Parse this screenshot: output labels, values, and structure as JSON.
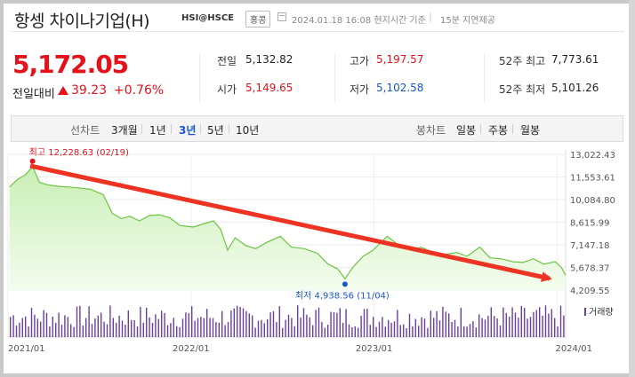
{
  "header": {
    "title": "항셍 차이나기업(H)",
    "code": "HSI@HSCE",
    "market": "홍콩",
    "timestamp": "2024.01.18 16:08 현지시간 기준",
    "separator": "|",
    "delay_note": "15분 지연제공"
  },
  "quote": {
    "price": "5,172.05",
    "change_label": "전일대비",
    "change_value": "39.23",
    "change_pct": "+0.76%",
    "stats": [
      {
        "label": "전일",
        "value": "5,132.82",
        "color": "#222222"
      },
      {
        "label": "시가",
        "value": "5,149.65",
        "color": "#e5111b"
      },
      {
        "label": "고가",
        "value": "5,197.57",
        "color": "#e5111b"
      },
      {
        "label": "저가",
        "value": "5,102.58",
        "color": "#1a57c8"
      },
      {
        "label": "52주 최고",
        "value": "7,773.61",
        "color": "#222222"
      },
      {
        "label": "52주 최저",
        "value": "5,101.26",
        "color": "#222222"
      }
    ]
  },
  "tabs": {
    "period_label": "선차트",
    "periods": [
      "3개월",
      "1년",
      "3년",
      "5년",
      "10년"
    ],
    "active_period": "3년",
    "candle_label": "봉차트",
    "candles": [
      "일봉",
      "주봉",
      "월봉"
    ]
  },
  "colors": {
    "up": "#e5111b",
    "down": "#1a57c8",
    "line": "#6cc445",
    "volume": "#6b3fa0",
    "arrow": "#ee3322"
  },
  "chart_data": {
    "type": "area",
    "y_ticks": [
      "13,022.43",
      "11,553.61",
      "10,084.80",
      "8,615.99",
      "7,147.18",
      "5,678.37",
      "4,209.55"
    ],
    "ylim": [
      4209.55,
      13022.43
    ],
    "x_ticks": [
      "2021/01",
      "2022/01",
      "2023/01",
      "2024/01"
    ],
    "x_range": [
      "2021-01-01",
      "2024-01-18"
    ],
    "series": [
      {
        "values": [
          {
            "x": "2021-01-04",
            "y": 10900
          },
          {
            "x": "2021-01-20",
            "y": 11400
          },
          {
            "x": "2021-02-05",
            "y": 11700
          },
          {
            "x": "2021-02-19",
            "y": 12228.63
          },
          {
            "x": "2021-03-05",
            "y": 11200
          },
          {
            "x": "2021-03-20",
            "y": 11050
          },
          {
            "x": "2021-04-10",
            "y": 10950
          },
          {
            "x": "2021-05-01",
            "y": 10900
          },
          {
            "x": "2021-05-20",
            "y": 10850
          },
          {
            "x": "2021-06-15",
            "y": 10750
          },
          {
            "x": "2021-07-10",
            "y": 10400
          },
          {
            "x": "2021-07-28",
            "y": 9200
          },
          {
            "x": "2021-08-15",
            "y": 8850
          },
          {
            "x": "2021-09-01",
            "y": 9000
          },
          {
            "x": "2021-09-20",
            "y": 8700
          },
          {
            "x": "2021-10-10",
            "y": 9050
          },
          {
            "x": "2021-10-30",
            "y": 9100
          },
          {
            "x": "2021-11-20",
            "y": 8900
          },
          {
            "x": "2021-12-10",
            "y": 8400
          },
          {
            "x": "2022-01-05",
            "y": 8300
          },
          {
            "x": "2022-01-25",
            "y": 8500
          },
          {
            "x": "2022-02-15",
            "y": 8700
          },
          {
            "x": "2022-03-01",
            "y": 8150
          },
          {
            "x": "2022-03-15",
            "y": 6800
          },
          {
            "x": "2022-03-30",
            "y": 7600
          },
          {
            "x": "2022-04-20",
            "y": 7100
          },
          {
            "x": "2022-05-10",
            "y": 6900
          },
          {
            "x": "2022-06-01",
            "y": 7300
          },
          {
            "x": "2022-06-28",
            "y": 7700
          },
          {
            "x": "2022-07-20",
            "y": 7000
          },
          {
            "x": "2022-08-15",
            "y": 6900
          },
          {
            "x": "2022-09-10",
            "y": 6600
          },
          {
            "x": "2022-10-01",
            "y": 5900
          },
          {
            "x": "2022-10-20",
            "y": 5600
          },
          {
            "x": "2022-11-04",
            "y": 4938.56
          },
          {
            "x": "2022-11-20",
            "y": 5700
          },
          {
            "x": "2022-12-10",
            "y": 6400
          },
          {
            "x": "2022-12-30",
            "y": 6800
          },
          {
            "x": "2023-01-27",
            "y": 7700
          },
          {
            "x": "2023-02-20",
            "y": 7100
          },
          {
            "x": "2023-03-15",
            "y": 6800
          },
          {
            "x": "2023-04-05",
            "y": 7000
          },
          {
            "x": "2023-04-25",
            "y": 6700
          },
          {
            "x": "2023-05-20",
            "y": 6500
          },
          {
            "x": "2023-06-15",
            "y": 6650
          },
          {
            "x": "2023-07-05",
            "y": 6400
          },
          {
            "x": "2023-07-31",
            "y": 7000
          },
          {
            "x": "2023-08-20",
            "y": 6300
          },
          {
            "x": "2023-09-10",
            "y": 6250
          },
          {
            "x": "2023-10-05",
            "y": 6050
          },
          {
            "x": "2023-10-25",
            "y": 6000
          },
          {
            "x": "2023-11-15",
            "y": 6250
          },
          {
            "x": "2023-12-05",
            "y": 5900
          },
          {
            "x": "2023-12-28",
            "y": 6050
          },
          {
            "x": "2024-01-10",
            "y": 5650
          },
          {
            "x": "2024-01-18",
            "y": 5172.05
          }
        ]
      }
    ],
    "max_marker": {
      "label": "최고",
      "value": "12,228.63",
      "date": "(02/19)",
      "x": "2021-02-19",
      "y": 12228.63
    },
    "min_marker": {
      "label": "최저",
      "value": "4,938.56",
      "date": "(11/04)",
      "x": "2022-11-04",
      "y": 4938.56
    },
    "volume_legend": "거래량",
    "grid": true
  }
}
